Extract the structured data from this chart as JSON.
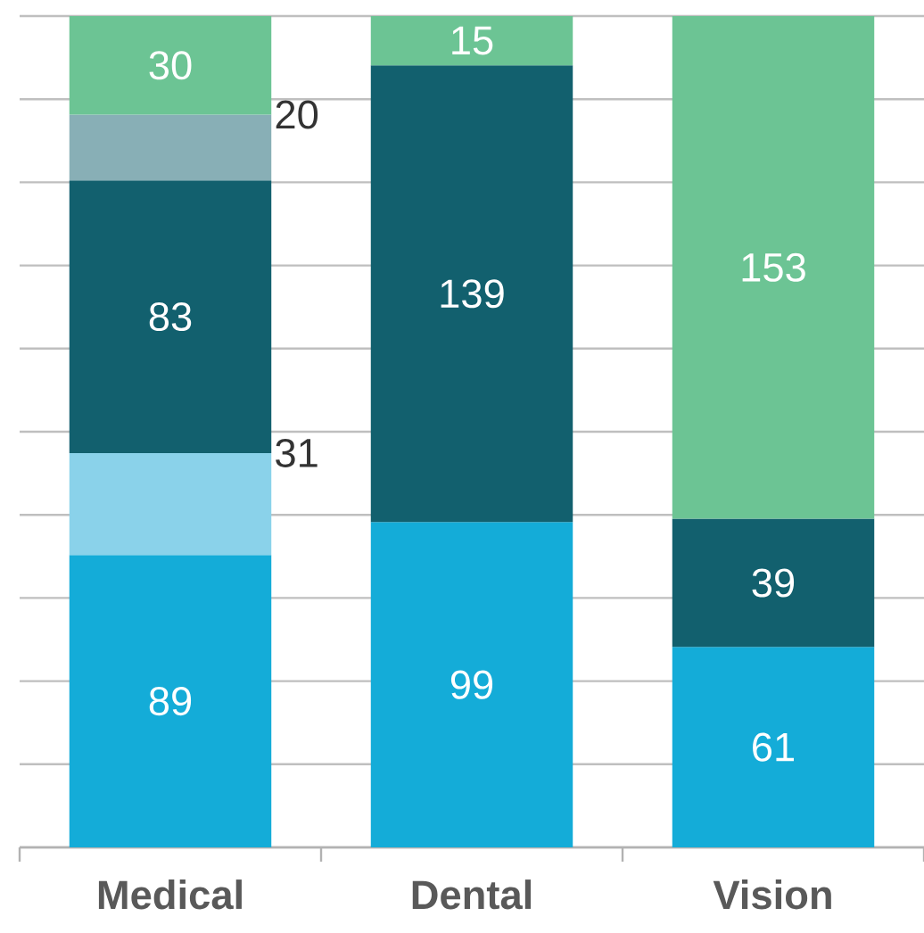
{
  "chart_data": {
    "type": "bar",
    "stacked": true,
    "categories": [
      "Medical",
      "Dental",
      "Vision"
    ],
    "series": [
      {
        "color": "#14acd8",
        "values": [
          89,
          99,
          61
        ]
      },
      {
        "color": "#8ad2ea",
        "values": [
          31,
          null,
          null
        ],
        "value_labels": [
          "31",
          null,
          null
        ]
      },
      {
        "color": "#12606e",
        "values": [
          83,
          139,
          39
        ]
      },
      {
        "color": "#88afb6",
        "values": [
          20,
          null,
          null
        ],
        "value_labels": [
          "20",
          null,
          null
        ]
      },
      {
        "color": "#6cc494",
        "values": [
          30,
          15,
          153
        ]
      }
    ],
    "ylim": [
      0,
      253
    ],
    "yticks": [
      {
        "value": 0,
        "label": null
      },
      {
        "value": 25.3,
        "label": null
      },
      {
        "value": 50.6,
        "label": null
      },
      {
        "value": 75.9,
        "label": null
      },
      {
        "value": 101.2,
        "label": null
      },
      {
        "value": 126.5,
        "label": null
      },
      {
        "value": 151.8,
        "label": null
      },
      {
        "value": 177.1,
        "label": null
      },
      {
        "value": 202.4,
        "label": null
      },
      {
        "value": 227.7,
        "label": null
      },
      {
        "value": 253,
        "label": null
      }
    ],
    "grid": "y",
    "tick_labels": "x",
    "data_labels": true
  }
}
